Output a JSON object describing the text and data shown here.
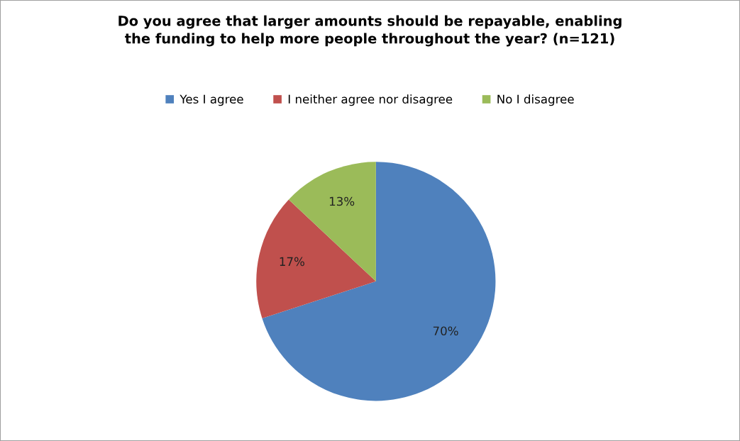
{
  "chart_data": {
    "type": "pie",
    "title": "Do you agree that larger amounts should be repayable, enabling\nthe funding to help more people throughout the year? (n=121)",
    "categories": [
      "Yes I agree",
      "I neither agree nor disagree",
      "No I disagree"
    ],
    "values": [
      70,
      17,
      13
    ],
    "colors": [
      "#4f81bd",
      "#c0504d",
      "#9bbb59"
    ],
    "value_labels": [
      "70%",
      "17%",
      "13%"
    ],
    "legend": "top"
  }
}
